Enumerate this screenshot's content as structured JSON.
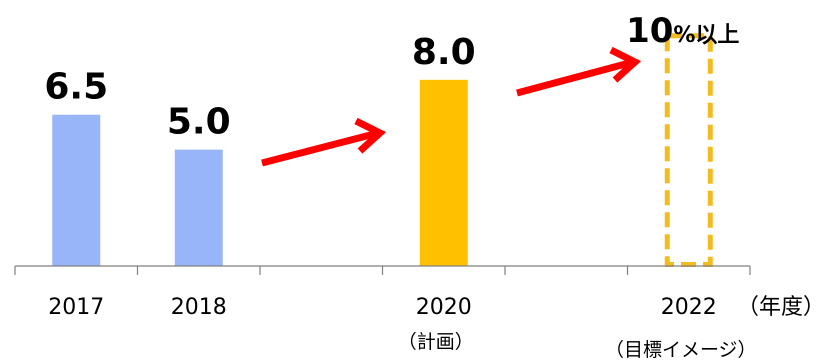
{
  "chart_data": {
    "type": "bar",
    "categories": [
      "2017",
      "2018",
      "",
      "2020",
      "",
      "2022"
    ],
    "category_sublabels": [
      "",
      "",
      "",
      "（計画）",
      "",
      "（目標イメージ）"
    ],
    "values": [
      6.5,
      5.0,
      null,
      8.0,
      null,
      10
    ],
    "value_labels": [
      "6.5",
      "5.0",
      "",
      "8.0",
      "",
      "10"
    ],
    "target_suffix": "%以上",
    "axis_unit": "（年度）",
    "bar_styles": [
      "actual",
      "actual",
      "none",
      "plan",
      "none",
      "target-outline"
    ],
    "ylim": [
      0,
      11
    ],
    "grid": false,
    "colors": {
      "actual": "#99B5FA",
      "plan": "#FFC000",
      "target_outline": "#F3BC1E",
      "arrow": "#FF0000",
      "axis": "#808080"
    }
  }
}
